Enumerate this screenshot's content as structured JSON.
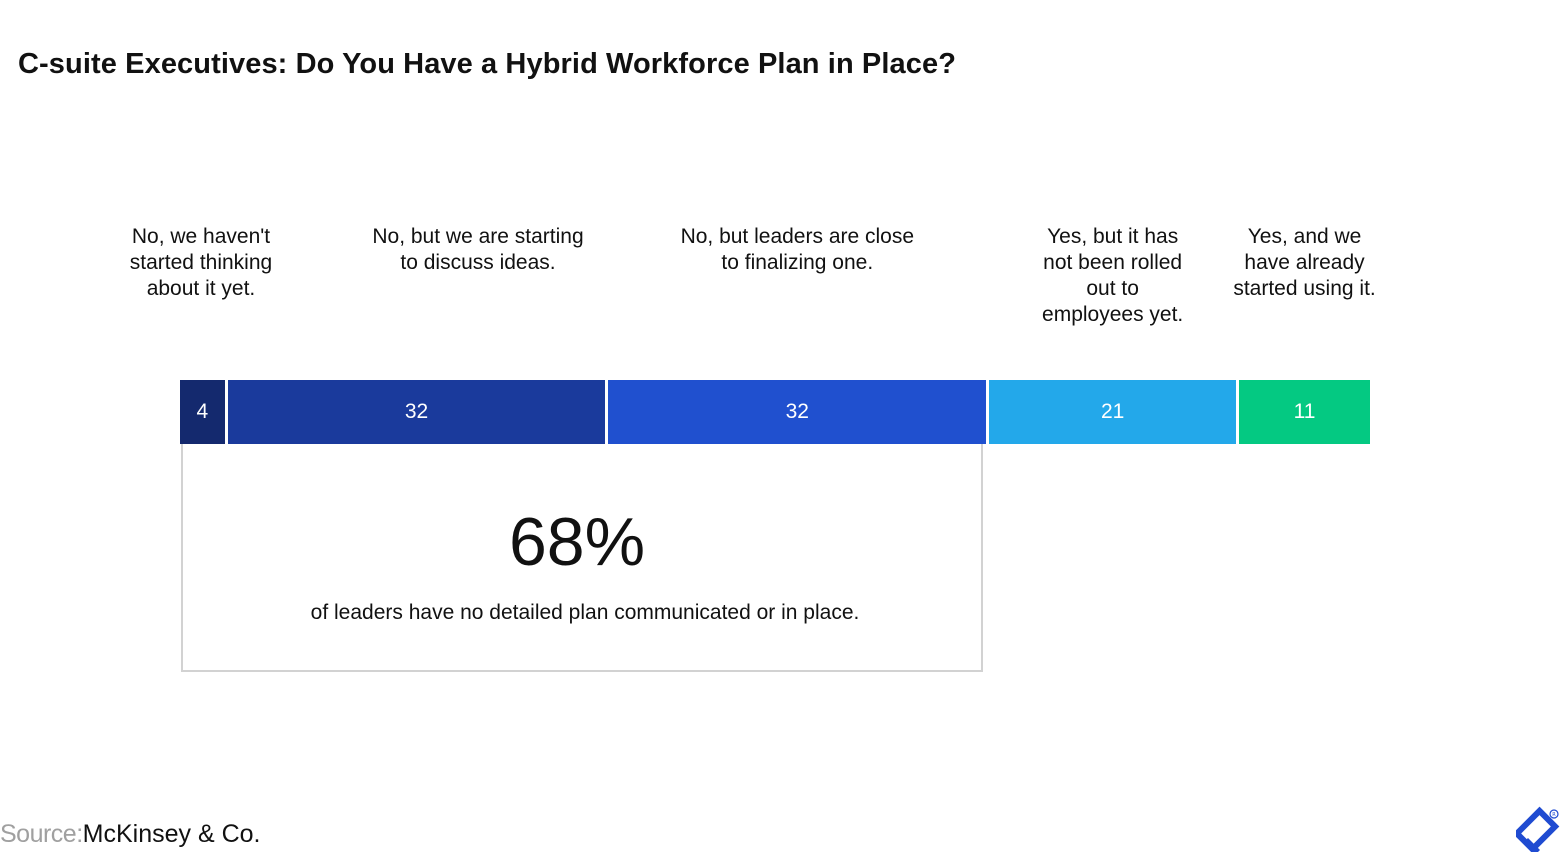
{
  "title": "C-suite Executives: Do You Have a Hybrid Workforce Plan in Place?",
  "chart_data": {
    "type": "bar",
    "orientation": "horizontal-stacked",
    "categories": [
      "No, we haven't started thinking about it yet.",
      "No, but we are starting to discuss ideas.",
      "No, but leaders are close to finalizing one.",
      "Yes, but it has not been rolled out to employees yet.",
      "Yes, and we have already started using it."
    ],
    "category_lines": [
      [
        "No, we haven't",
        "started thinking",
        "about it yet."
      ],
      [
        "No, but we are starting",
        "to discuss ideas."
      ],
      [
        "No, but leaders are close",
        "to finalizing one."
      ],
      [
        "Yes, but it has",
        "not been rolled",
        "out to",
        "employees yet."
      ],
      [
        "Yes, and we",
        "have already",
        "started using it."
      ]
    ],
    "values": [
      4,
      32,
      32,
      21,
      11
    ],
    "value_labels": [
      "4",
      "32",
      "32",
      "21",
      "11"
    ],
    "colors": [
      "#14296e",
      "#1a3a9c",
      "#2050cf",
      "#23a8ea",
      "#04c982"
    ],
    "total": 100,
    "grid": false,
    "legend": "none"
  },
  "callout": {
    "value": "68%",
    "text": "of leaders have no detailed plan communicated or in place.",
    "spans_segments": [
      0,
      1,
      2
    ]
  },
  "source": {
    "label": "Source:",
    "value": "McKinsey & Co."
  },
  "brand": {
    "icon": "toptal-logo-icon",
    "color": "#1f4bd1"
  }
}
